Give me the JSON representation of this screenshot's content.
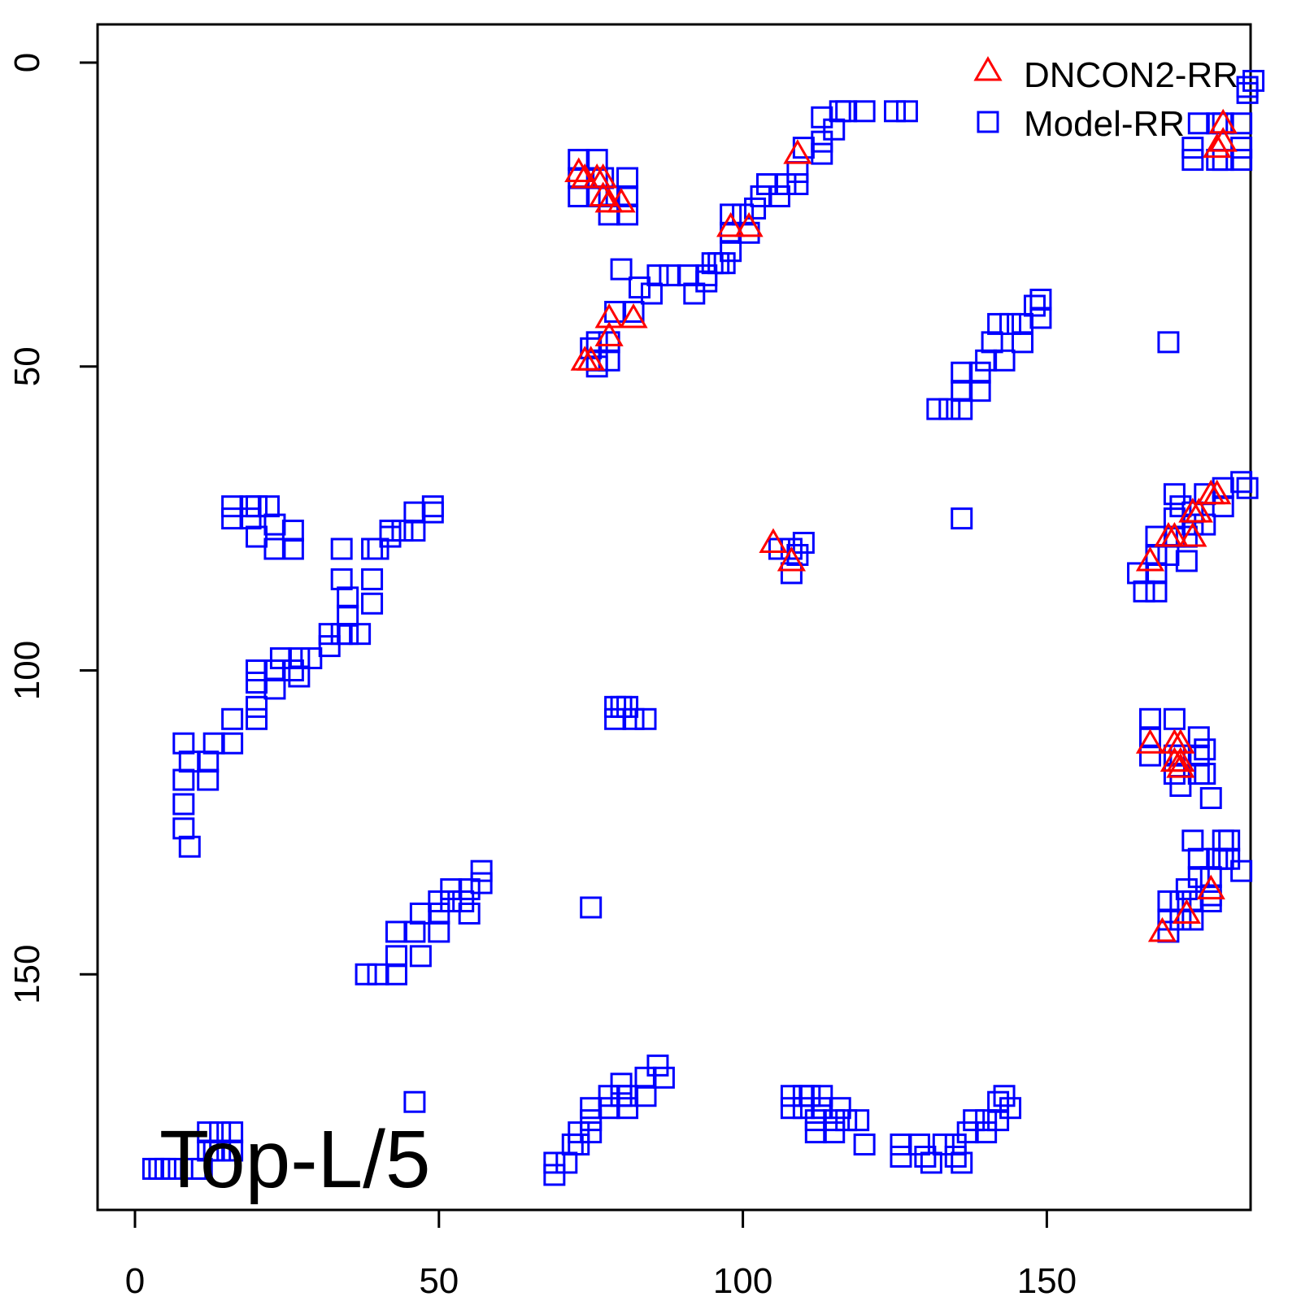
{
  "chart_data": {
    "type": "scatter",
    "panel_label": "Top-L/5",
    "xlim": [
      -6,
      184
    ],
    "ylim": [
      -6,
      189
    ],
    "y_reversed": true,
    "x_ticks": [
      0,
      50,
      100,
      150
    ],
    "y_ticks": [
      0,
      50,
      100,
      150
    ],
    "grid": false,
    "legend_position": "top-right",
    "colors": {
      "dncon": "#ff0000",
      "model": "#0000ff"
    },
    "series": [
      {
        "name": "DNCON2-RR",
        "marker": "triangle",
        "points": [
          [
            73,
            18
          ],
          [
            74,
            19
          ],
          [
            76,
            19
          ],
          [
            77,
            19
          ],
          [
            77,
            22
          ],
          [
            78,
            23
          ],
          [
            80,
            23
          ],
          [
            98,
            27
          ],
          [
            101,
            27
          ],
          [
            109,
            15
          ],
          [
            74,
            49
          ],
          [
            75,
            49
          ],
          [
            78,
            42
          ],
          [
            78,
            45
          ],
          [
            82,
            42
          ],
          [
            105,
            79
          ],
          [
            108,
            82
          ],
          [
            179,
            10
          ],
          [
            179,
            13
          ],
          [
            178,
            14
          ],
          [
            167,
            82
          ],
          [
            170,
            78
          ],
          [
            171,
            78
          ],
          [
            174,
            78
          ],
          [
            174,
            74
          ],
          [
            175,
            74
          ],
          [
            177,
            71
          ],
          [
            178,
            71
          ],
          [
            167,
            112
          ],
          [
            171,
            112
          ],
          [
            172,
            112
          ],
          [
            171,
            115
          ],
          [
            172,
            115
          ],
          [
            172,
            116
          ],
          [
            169,
            143
          ],
          [
            173,
            140
          ],
          [
            177,
            136
          ]
        ]
      },
      {
        "name": "Model-RR",
        "marker": "square",
        "points": [
          [
            73,
            16
          ],
          [
            73,
            19
          ],
          [
            73,
            22
          ],
          [
            76,
            16
          ],
          [
            76,
            19
          ],
          [
            76,
            22
          ],
          [
            77,
            19
          ],
          [
            78,
            22
          ],
          [
            78,
            25
          ],
          [
            81,
            19
          ],
          [
            81,
            22
          ],
          [
            81,
            25
          ],
          [
            80,
            34
          ],
          [
            83,
            37
          ],
          [
            85,
            38
          ],
          [
            86,
            35
          ],
          [
            88,
            35
          ],
          [
            91,
            35
          ],
          [
            92,
            38
          ],
          [
            94,
            35
          ],
          [
            94,
            36
          ],
          [
            95,
            33
          ],
          [
            96,
            33
          ],
          [
            97,
            33
          ],
          [
            98,
            31
          ],
          [
            98,
            28
          ],
          [
            98,
            25
          ],
          [
            100,
            25
          ],
          [
            101,
            28
          ],
          [
            102,
            24
          ],
          [
            103,
            22
          ],
          [
            104,
            20
          ],
          [
            106,
            22
          ],
          [
            107,
            20
          ],
          [
            109,
            20
          ],
          [
            109,
            18
          ],
          [
            110,
            14
          ],
          [
            113,
            13
          ],
          [
            113,
            15
          ],
          [
            113,
            9
          ],
          [
            115,
            11
          ],
          [
            116,
            8
          ],
          [
            117,
            8
          ],
          [
            120,
            8
          ],
          [
            125,
            8
          ],
          [
            127,
            8
          ],
          [
            82,
            41
          ],
          [
            79,
            41
          ],
          [
            76,
            46
          ],
          [
            76,
            49
          ],
          [
            75,
            47
          ],
          [
            76,
            50
          ],
          [
            78,
            49
          ],
          [
            78,
            46
          ],
          [
            132,
            57
          ],
          [
            134,
            57
          ],
          [
            136,
            57
          ],
          [
            136,
            54
          ],
          [
            136,
            51
          ],
          [
            139,
            54
          ],
          [
            139,
            51
          ],
          [
            140,
            49
          ],
          [
            141,
            46
          ],
          [
            142,
            43
          ],
          [
            143,
            49
          ],
          [
            144,
            43
          ],
          [
            146,
            46
          ],
          [
            146,
            43
          ],
          [
            148,
            40
          ],
          [
            149,
            42
          ],
          [
            149,
            39
          ],
          [
            170,
            46
          ],
          [
            16,
            73
          ],
          [
            16,
            75
          ],
          [
            19,
            73
          ],
          [
            19,
            75
          ],
          [
            20,
            73
          ],
          [
            20,
            78
          ],
          [
            22,
            73
          ],
          [
            23,
            76
          ],
          [
            23,
            80
          ],
          [
            26,
            77
          ],
          [
            26,
            80
          ],
          [
            34,
            80
          ],
          [
            34,
            85
          ],
          [
            35,
            88
          ],
          [
            35,
            91
          ],
          [
            35,
            94
          ],
          [
            32,
            94
          ],
          [
            32,
            96
          ],
          [
            34,
            94
          ],
          [
            37,
            94
          ],
          [
            39,
            80
          ],
          [
            39,
            85
          ],
          [
            39,
            89
          ],
          [
            40,
            80
          ],
          [
            42,
            78
          ],
          [
            42,
            77
          ],
          [
            44,
            77
          ],
          [
            46,
            74
          ],
          [
            46,
            77
          ],
          [
            49,
            74
          ],
          [
            49,
            73
          ],
          [
            8,
            112
          ],
          [
            9,
            115
          ],
          [
            8,
            118
          ],
          [
            8,
            122
          ],
          [
            8,
            126
          ],
          [
            9,
            129
          ],
          [
            12,
            115
          ],
          [
            12,
            118
          ],
          [
            13,
            112
          ],
          [
            16,
            112
          ],
          [
            16,
            108
          ],
          [
            20,
            108
          ],
          [
            20,
            106
          ],
          [
            20,
            102
          ],
          [
            20,
            100
          ],
          [
            23,
            100
          ],
          [
            23,
            103
          ],
          [
            24,
            98
          ],
          [
            26,
            100
          ],
          [
            27,
            98
          ],
          [
            27,
            101
          ],
          [
            29,
            98
          ],
          [
            38,
            150
          ],
          [
            40,
            150
          ],
          [
            43,
            150
          ],
          [
            43,
            147
          ],
          [
            43,
            143
          ],
          [
            46,
            143
          ],
          [
            47,
            140
          ],
          [
            47,
            147
          ],
          [
            50,
            143
          ],
          [
            50,
            140
          ],
          [
            50,
            138
          ],
          [
            52,
            138
          ],
          [
            52,
            136
          ],
          [
            54,
            138
          ],
          [
            55,
            136
          ],
          [
            55,
            140
          ],
          [
            57,
            133
          ],
          [
            57,
            135
          ],
          [
            75,
            139
          ],
          [
            106,
            80
          ],
          [
            108,
            80
          ],
          [
            109,
            81
          ],
          [
            110,
            79
          ],
          [
            108,
            84
          ],
          [
            172,
            73
          ],
          [
            171,
            71
          ],
          [
            174,
            74
          ],
          [
            174,
            76
          ],
          [
            176,
            76
          ],
          [
            176,
            71
          ],
          [
            179,
            73
          ],
          [
            179,
            70
          ],
          [
            182,
            69
          ],
          [
            183,
            70
          ],
          [
            165,
            84
          ],
          [
            166,
            87
          ],
          [
            168,
            84
          ],
          [
            168,
            87
          ],
          [
            168,
            81
          ],
          [
            170,
            81
          ],
          [
            171,
            78
          ],
          [
            173,
            78
          ],
          [
            173,
            82
          ],
          [
            171,
            75
          ],
          [
            168,
            78
          ],
          [
            167,
            108
          ],
          [
            167,
            111
          ],
          [
            167,
            114
          ],
          [
            171,
            108
          ],
          [
            171,
            114
          ],
          [
            171,
            117
          ],
          [
            172,
            114
          ],
          [
            172,
            119
          ],
          [
            175,
            111
          ],
          [
            175,
            114
          ],
          [
            175,
            117
          ],
          [
            176,
            113
          ],
          [
            176,
            117
          ],
          [
            177,
            121
          ],
          [
            79,
            106
          ],
          [
            79,
            108
          ],
          [
            80,
            106
          ],
          [
            81,
            106
          ],
          [
            82,
            108
          ],
          [
            84,
            108
          ],
          [
            174,
            128
          ],
          [
            175,
            131
          ],
          [
            175,
            134
          ],
          [
            177,
            134
          ],
          [
            178,
            131
          ],
          [
            179,
            128
          ],
          [
            179,
            131
          ],
          [
            180,
            131
          ],
          [
            180,
            128
          ],
          [
            182,
            133
          ],
          [
            177,
            137
          ],
          [
            174,
            141
          ],
          [
            172,
            141
          ],
          [
            170,
            141
          ],
          [
            170,
            143
          ],
          [
            170,
            138
          ],
          [
            172,
            138
          ],
          [
            173,
            136
          ],
          [
            174,
            138
          ],
          [
            177,
            138
          ],
          [
            174,
            14
          ],
          [
            174,
            16
          ],
          [
            175,
            10
          ],
          [
            178,
            10
          ],
          [
            178,
            16
          ],
          [
            179,
            10
          ],
          [
            179,
            16
          ],
          [
            182,
            10
          ],
          [
            182,
            14
          ],
          [
            182,
            16
          ],
          [
            183,
            4
          ],
          [
            183,
            5
          ],
          [
            184,
            3
          ],
          [
            136,
            75
          ],
          [
            3,
            182
          ],
          [
            4,
            182
          ],
          [
            5,
            182
          ],
          [
            6,
            182
          ],
          [
            10,
            182
          ],
          [
            11,
            182
          ],
          [
            12,
            179
          ],
          [
            13,
            179
          ],
          [
            14,
            176
          ],
          [
            14,
            179
          ],
          [
            16,
            176
          ],
          [
            16,
            179
          ],
          [
            12,
            176
          ],
          [
            69,
            181
          ],
          [
            69,
            183
          ],
          [
            71,
            181
          ],
          [
            72,
            178
          ],
          [
            73,
            178
          ],
          [
            73,
            176
          ],
          [
            75,
            176
          ],
          [
            75,
            174
          ],
          [
            75,
            172
          ],
          [
            78,
            172
          ],
          [
            78,
            170
          ],
          [
            80,
            170
          ],
          [
            80,
            168
          ],
          [
            81,
            170
          ],
          [
            81,
            172
          ],
          [
            84,
            167
          ],
          [
            84,
            170
          ],
          [
            86,
            165
          ],
          [
            87,
            167
          ],
          [
            46,
            171
          ],
          [
            108,
            170
          ],
          [
            108,
            172
          ],
          [
            110,
            170
          ],
          [
            110,
            172
          ],
          [
            111,
            170
          ],
          [
            112,
            174
          ],
          [
            112,
            176
          ],
          [
            113,
            172
          ],
          [
            113,
            170
          ],
          [
            115,
            174
          ],
          [
            115,
            176
          ],
          [
            116,
            172
          ],
          [
            117,
            174
          ],
          [
            119,
            174
          ],
          [
            120,
            178
          ],
          [
            126,
            180
          ],
          [
            126,
            178
          ],
          [
            129,
            178
          ],
          [
            130,
            180
          ],
          [
            131,
            181
          ],
          [
            133,
            178
          ],
          [
            135,
            178
          ],
          [
            135,
            180
          ],
          [
            136,
            181
          ],
          [
            137,
            176
          ],
          [
            138,
            174
          ],
          [
            140,
            174
          ],
          [
            140,
            176
          ],
          [
            142,
            171
          ],
          [
            142,
            174
          ],
          [
            143,
            170
          ],
          [
            144,
            172
          ]
        ]
      }
    ]
  }
}
